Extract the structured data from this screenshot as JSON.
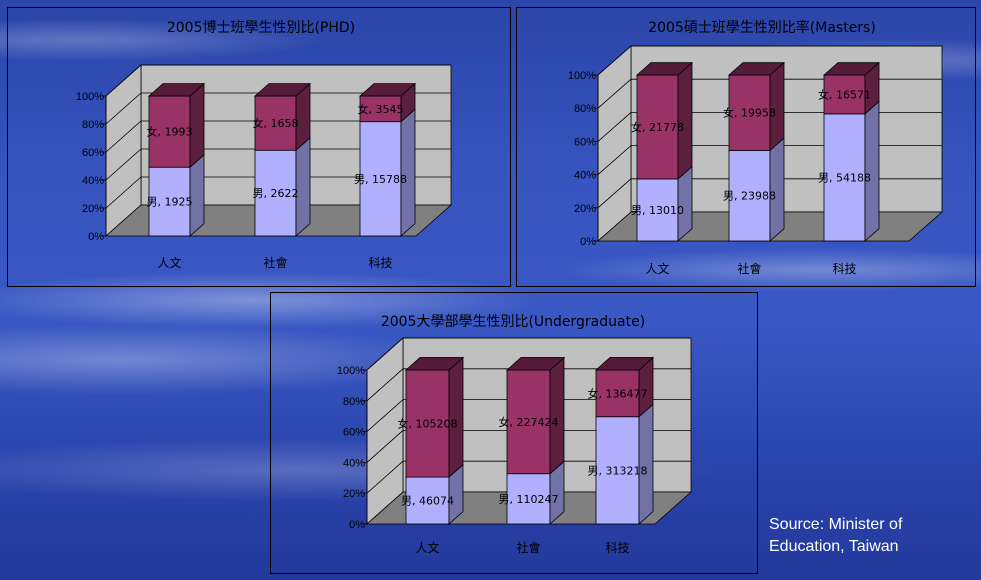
{
  "source_note": "Source: Minister of\nEducation, Taiwan",
  "colors": {
    "male": "#b0b0ff",
    "female": "#993366",
    "wall": "#c0c0c0",
    "floor": "#808080"
  },
  "chart_data": [
    {
      "type": "bar",
      "stacked": "percent",
      "title": "2005博士班學生性別比(PHD)",
      "categories": [
        "人文",
        "社會",
        "科技"
      ],
      "yticks": [
        "0%",
        "20%",
        "40%",
        "60%",
        "80%",
        "100%"
      ],
      "ylim": [
        0,
        100
      ],
      "series": [
        {
          "name": "男",
          "values": [
            1925,
            2622,
            15788
          ],
          "labels": [
            "男, 1925",
            "男, 2622",
            "男, 15788"
          ]
        },
        {
          "name": "女",
          "values": [
            1993,
            1658,
            3545
          ],
          "labels": [
            "女, 1993",
            "女, 1658",
            "女, 3545"
          ]
        }
      ]
    },
    {
      "type": "bar",
      "stacked": "percent",
      "title": "2005碩士班學生性別比率(Masters)",
      "categories": [
        "人文",
        "社會",
        "科技"
      ],
      "yticks": [
        "0%",
        "20%",
        "40%",
        "60%",
        "80%",
        "100%"
      ],
      "ylim": [
        0,
        100
      ],
      "series": [
        {
          "name": "男",
          "values": [
            13010,
            23988,
            54188
          ],
          "labels": [
            "男, 13010",
            "男, 23988",
            "男, 54188"
          ]
        },
        {
          "name": "女",
          "values": [
            21778,
            19958,
            16571
          ],
          "labels": [
            "女, 21778",
            "女, 19958",
            "女, 16571"
          ]
        }
      ]
    },
    {
      "type": "bar",
      "stacked": "percent",
      "title": "2005大學部學生性別比(Undergraduate)",
      "categories": [
        "人文",
        "社會",
        "科技"
      ],
      "yticks": [
        "0%",
        "20%",
        "40%",
        "60%",
        "80%",
        "100%"
      ],
      "ylim": [
        0,
        100
      ],
      "series": [
        {
          "name": "男",
          "values": [
            46074,
            110247,
            313218
          ],
          "labels": [
            "男, 46074",
            "男, 110247",
            "男, 313218"
          ]
        },
        {
          "name": "女",
          "values": [
            105208,
            227424,
            136477
          ],
          "labels": [
            "女, 105208",
            "女, 227424",
            "女, 136477"
          ]
        }
      ]
    }
  ]
}
